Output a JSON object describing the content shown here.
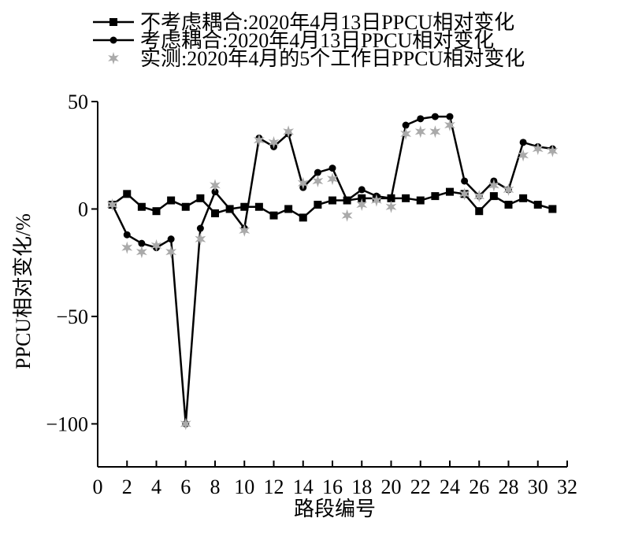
{
  "chart_data": {
    "type": "line",
    "xlabel": "路段编号",
    "ylabel": "PPCU相对变化/%",
    "x": [
      1,
      2,
      3,
      4,
      5,
      6,
      7,
      8,
      9,
      10,
      11,
      12,
      13,
      14,
      15,
      16,
      17,
      18,
      19,
      20,
      21,
      22,
      23,
      24,
      25,
      26,
      27,
      28,
      29,
      30,
      31
    ],
    "series": [
      {
        "name": "不考虑耦合:2020年4月13日PPCU相对变化",
        "color": "#000000",
        "marker": "square",
        "values": [
          2,
          7,
          1,
          -1,
          4,
          1,
          5,
          -2,
          0,
          1,
          1,
          -3,
          0,
          -4,
          2,
          4,
          4,
          5,
          5,
          5,
          5,
          4,
          6,
          8,
          7,
          -1,
          6,
          2,
          5,
          2,
          0
        ]
      },
      {
        "name": "考虑耦合:2020年4月13日PPCU相对变化",
        "color": "#000000",
        "marker": "circle",
        "values": [
          2,
          -12,
          -16,
          -18,
          -14,
          -100,
          -9,
          8,
          0,
          -9,
          33,
          29,
          35,
          10,
          17,
          19,
          4,
          9,
          6,
          5,
          39,
          42,
          43,
          43,
          13,
          6,
          13,
          9,
          31,
          29,
          28
        ]
      },
      {
        "name": "实测:2020年4月的5个工作日PPCU相对变化",
        "color": "#aaaaaa",
        "marker": "star",
        "values": [
          2,
          -18,
          -20,
          -17,
          -20,
          -100,
          -14,
          11,
          null,
          -10,
          32,
          31,
          36,
          12,
          13,
          14,
          -3,
          2,
          4,
          1,
          35,
          36,
          36,
          39,
          7,
          6,
          11,
          9,
          25,
          28,
          27
        ]
      }
    ],
    "xlim": [
      0,
      32
    ],
    "xticks": [
      0,
      2,
      4,
      6,
      8,
      10,
      12,
      14,
      16,
      18,
      20,
      22,
      24,
      26,
      28,
      30,
      32
    ],
    "ylim": [
      -120,
      50
    ],
    "yticks": [
      {
        "value": -100,
        "label": "−100"
      },
      {
        "value": -50,
        "label": "−50"
      },
      0,
      50
    ]
  }
}
